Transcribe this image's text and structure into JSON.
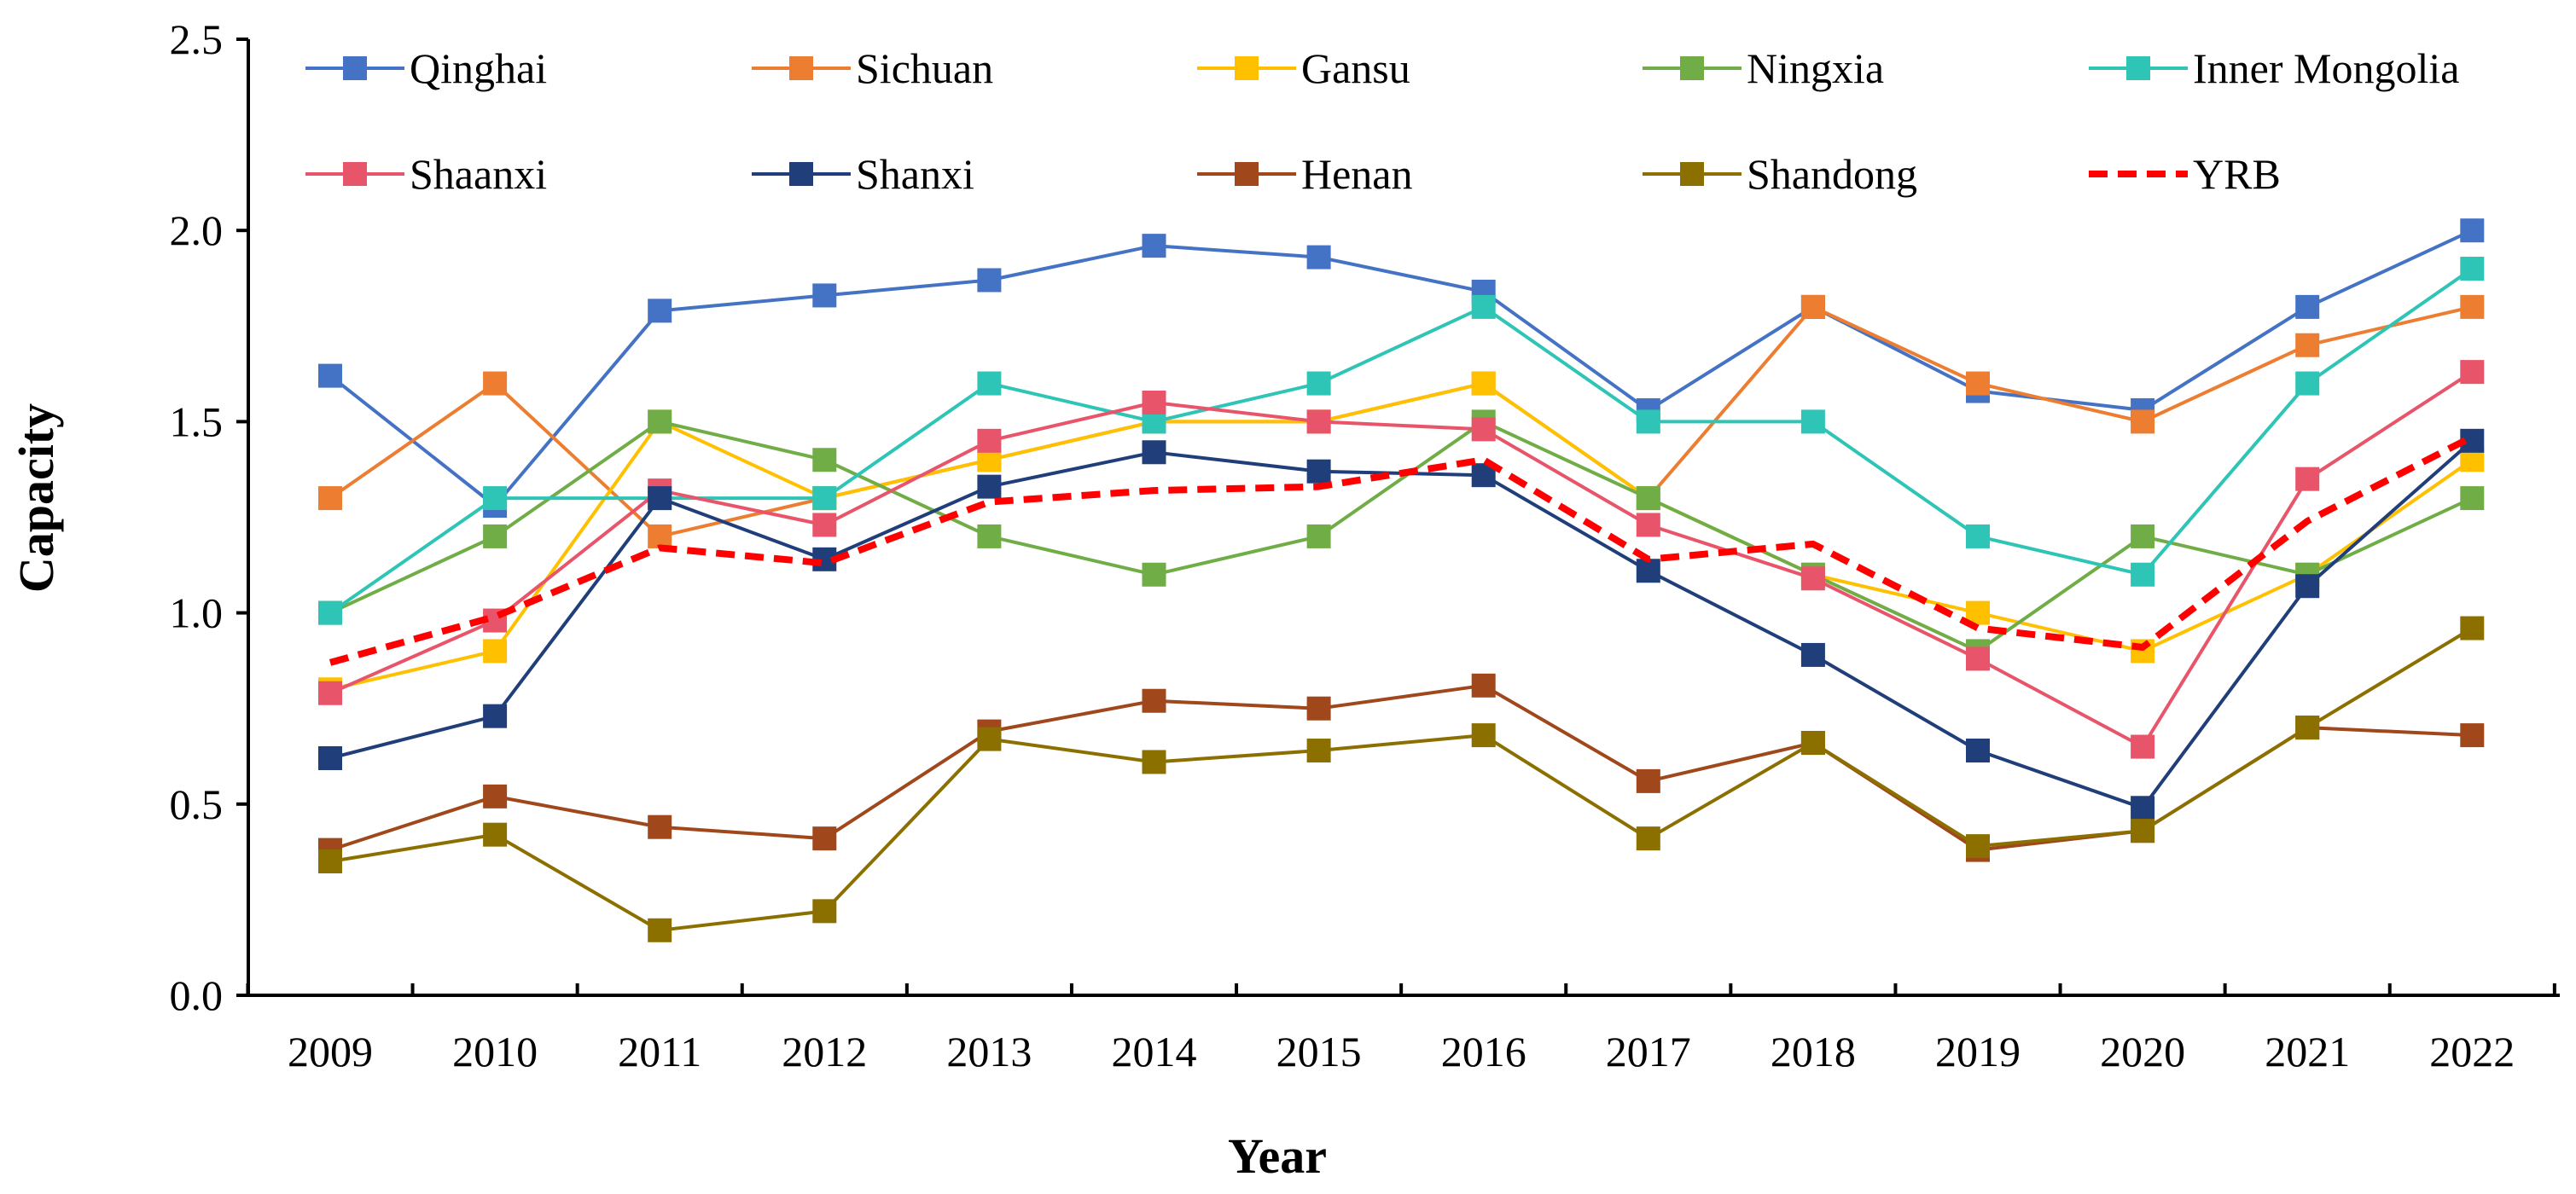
{
  "chart_data": {
    "type": "line",
    "title": "",
    "xlabel": "Year",
    "ylabel": "Capacity",
    "ylim": [
      0,
      2.5
    ],
    "yticks": [
      "0.0",
      "0.5",
      "1.0",
      "1.5",
      "2.0",
      "2.5"
    ],
    "categories": [
      "2009",
      "2010",
      "2011",
      "2012",
      "2013",
      "2014",
      "2015",
      "2016",
      "2017",
      "2018",
      "2019",
      "2020",
      "2021",
      "2022"
    ],
    "grid": false,
    "legend": "top, inside plot area, 5 columns x 2 rows",
    "series": [
      {
        "name": "Qinghai",
        "color": "#4472C4",
        "marker": "square",
        "dash": "solid",
        "values": [
          1.62,
          1.28,
          1.79,
          1.83,
          1.87,
          1.96,
          1.93,
          1.84,
          1.53,
          1.8,
          1.58,
          1.53,
          1.8,
          2.0
        ]
      },
      {
        "name": "Sichuan",
        "color": "#ED7D31",
        "marker": "square",
        "dash": "solid",
        "values": [
          1.3,
          1.6,
          1.2,
          1.3,
          1.4,
          1.5,
          1.5,
          1.6,
          1.3,
          1.8,
          1.6,
          1.5,
          1.7,
          1.8
        ]
      },
      {
        "name": "Gansu",
        "color": "#FFC000",
        "marker": "square",
        "dash": "solid",
        "values": [
          0.8,
          0.9,
          1.5,
          1.3,
          1.4,
          1.5,
          1.5,
          1.6,
          1.3,
          1.1,
          1.0,
          0.9,
          1.1,
          1.4
        ]
      },
      {
        "name": "Ningxia",
        "color": "#70AD47",
        "marker": "square",
        "dash": "solid",
        "values": [
          1.0,
          1.2,
          1.5,
          1.4,
          1.2,
          1.1,
          1.2,
          1.5,
          1.3,
          1.1,
          0.9,
          1.2,
          1.1,
          1.3
        ]
      },
      {
        "name": "Inner Mongolia",
        "color": "#2EC4B6",
        "marker": "square",
        "dash": "solid",
        "values": [
          1.0,
          1.3,
          1.3,
          1.3,
          1.6,
          1.5,
          1.6,
          1.8,
          1.5,
          1.5,
          1.2,
          1.1,
          1.6,
          1.9
        ]
      },
      {
        "name": "Shaanxi",
        "color": "#E8556A",
        "marker": "square",
        "dash": "solid",
        "values": [
          0.79,
          0.98,
          1.32,
          1.23,
          1.45,
          1.55,
          1.5,
          1.48,
          1.23,
          1.09,
          0.88,
          0.65,
          1.35,
          1.63
        ]
      },
      {
        "name": "Shanxi",
        "color": "#203E7A",
        "marker": "square",
        "dash": "solid",
        "values": [
          0.62,
          0.73,
          1.3,
          1.14,
          1.33,
          1.42,
          1.37,
          1.36,
          1.11,
          0.89,
          0.64,
          0.49,
          1.07,
          1.45
        ]
      },
      {
        "name": "Henan",
        "color": "#A0471B",
        "marker": "square",
        "dash": "solid",
        "values": [
          0.38,
          0.52,
          0.44,
          0.41,
          0.69,
          0.77,
          0.75,
          0.81,
          0.56,
          0.66,
          0.38,
          0.43,
          0.7,
          0.68
        ]
      },
      {
        "name": "Shandong",
        "color": "#8B7000",
        "marker": "square",
        "dash": "solid",
        "values": [
          0.35,
          0.42,
          0.17,
          0.22,
          0.67,
          0.61,
          0.64,
          0.68,
          0.41,
          0.66,
          0.39,
          0.43,
          0.7,
          0.96
        ]
      },
      {
        "name": "YRB",
        "color": "#FF0000",
        "marker": "none",
        "dash": "dashed",
        "values": [
          0.87,
          0.99,
          1.17,
          1.13,
          1.29,
          1.32,
          1.33,
          1.4,
          1.14,
          1.18,
          0.96,
          0.91,
          1.24,
          1.46
        ]
      }
    ]
  }
}
